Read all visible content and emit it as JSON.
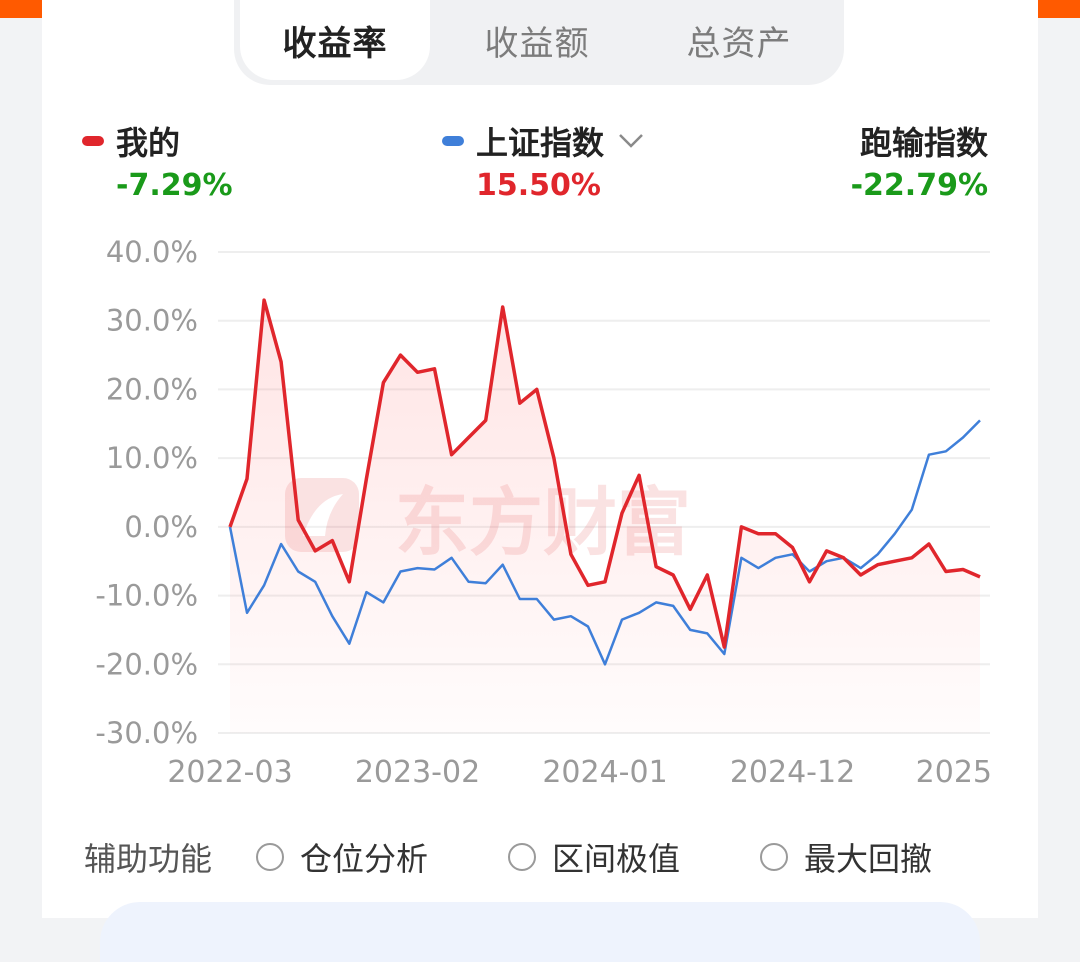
{
  "tabs": [
    {
      "label": "收益率",
      "active": true
    },
    {
      "label": "收益额",
      "active": false
    },
    {
      "label": "总资产",
      "active": false
    }
  ],
  "legend": {
    "mine": {
      "label": "我的",
      "value": "-7.29%",
      "color": "#e0262c",
      "value_color": "#1a9a1a"
    },
    "index": {
      "label": "上证指数",
      "value": "15.50%",
      "color": "#3f7fd9",
      "value_color": "#e0262c",
      "icon": "chevron-down-icon"
    },
    "lag": {
      "label": "跑输指数",
      "value": "-22.79%",
      "value_color": "#1a9a1a"
    }
  },
  "watermark": "东方财富",
  "aux": {
    "title": "辅助功能",
    "options": [
      "仓位分析",
      "区间极值",
      "最大回撤"
    ]
  },
  "chart_data": {
    "type": "line",
    "ylim": [
      -30,
      40
    ],
    "yticks": [
      40,
      30,
      20,
      10,
      0,
      -10,
      -20,
      -30
    ],
    "ytick_labels": [
      "40.0%",
      "30.0%",
      "20.0%",
      "10.0%",
      "0.0%",
      "-10.0%",
      "-20.0%",
      "-30.0%"
    ],
    "xtick_labels": [
      "2022-03",
      "2023-02",
      "2024-01",
      "2024-12",
      "2025"
    ],
    "xtick_index": [
      0,
      11,
      22,
      33,
      44
    ],
    "grid": true,
    "series": [
      {
        "name": "我的",
        "color": "#e0262c",
        "values": [
          0.0,
          7.0,
          33.0,
          24.0,
          1.0,
          -3.5,
          -2.0,
          -8.0,
          7.0,
          21.0,
          25.0,
          22.5,
          23.0,
          10.5,
          13.0,
          15.5,
          32.0,
          18.0,
          20.0,
          10.0,
          -4.0,
          -8.5,
          -8.0,
          2.0,
          7.5,
          -5.8,
          -7.0,
          -12.0,
          -7.0,
          -17.5,
          0.0,
          -1.0,
          -1.0,
          -3.0,
          -8.0,
          -3.5,
          -4.5,
          -7.0,
          -5.5,
          -5.0,
          -4.5,
          -2.5,
          -6.5,
          -6.2,
          -7.29
        ]
      },
      {
        "name": "上证指数",
        "color": "#3f7fd9",
        "values": [
          0.0,
          -12.5,
          -8.5,
          -2.5,
          -6.5,
          -8.0,
          -13.0,
          -17.0,
          -9.5,
          -11.0,
          -6.5,
          -6.0,
          -6.2,
          -4.5,
          -8.0,
          -8.2,
          -5.5,
          -10.5,
          -10.5,
          -13.5,
          -13.0,
          -14.5,
          -20.0,
          -13.5,
          -12.5,
          -11.0,
          -11.5,
          -15.0,
          -15.5,
          -18.5,
          -4.5,
          -6.0,
          -4.5,
          -4.0,
          -6.5,
          -5.0,
          -4.5,
          -6.0,
          -4.0,
          -1.0,
          2.5,
          10.5,
          11.0,
          13.0,
          15.5
        ]
      }
    ]
  }
}
